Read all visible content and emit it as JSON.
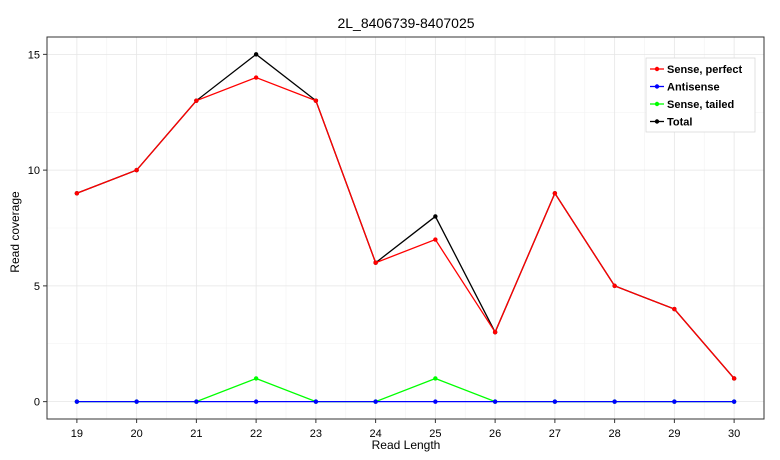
{
  "chart_data": {
    "type": "line",
    "title": "2L_8406739-8407025",
    "xlabel": "Read Length",
    "ylabel": "Read coverage",
    "x": [
      19,
      20,
      21,
      22,
      23,
      24,
      25,
      26,
      27,
      28,
      29,
      30
    ],
    "xlim": [
      18.5,
      30.5
    ],
    "ylim": [
      -0.75,
      15.75
    ],
    "xticks": [
      "19",
      "20",
      "21",
      "22",
      "23",
      "24",
      "25",
      "26",
      "27",
      "28",
      "29",
      "30"
    ],
    "yticks": [
      0,
      5,
      10,
      15
    ],
    "grid": true,
    "legend_position": "top-right",
    "series": [
      {
        "name": "Sense, perfect",
        "color": "#ff0000",
        "values": [
          9,
          10,
          13,
          14,
          13,
          6,
          7,
          3,
          9,
          5,
          4,
          1
        ]
      },
      {
        "name": "Antisense",
        "color": "#0000ff",
        "values": [
          0,
          0,
          0,
          0,
          0,
          0,
          0,
          0,
          0,
          0,
          0,
          0
        ]
      },
      {
        "name": "Sense, tailed",
        "color": "#00ff00",
        "values": [
          0,
          0,
          0,
          1,
          0,
          0,
          1,
          0,
          0,
          0,
          0,
          0
        ]
      },
      {
        "name": "Total",
        "color": "#000000",
        "values": [
          9,
          10,
          13,
          15,
          13,
          6,
          8,
          3,
          9,
          5,
          4,
          1
        ]
      }
    ]
  }
}
